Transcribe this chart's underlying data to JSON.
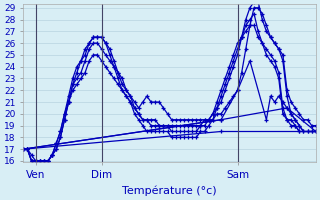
{
  "xlabel": "Température (°c)",
  "bg_color": "#d8eef5",
  "grid_color": "#b8d4e0",
  "line_color": "#0000bb",
  "ylim": [
    16,
    29
  ],
  "yticks": [
    16,
    17,
    18,
    19,
    20,
    21,
    22,
    23,
    24,
    25,
    26,
    27,
    28,
    29
  ],
  "xlim": [
    0,
    71
  ],
  "xtick_labels": [
    "Ven",
    "Dim",
    "Sam"
  ],
  "xtick_positions": [
    3,
    19,
    52
  ],
  "vline_positions": [
    3,
    19,
    52
  ],
  "series": [
    {
      "x": [
        0,
        1,
        2,
        3,
        4,
        5,
        6,
        7,
        8,
        9,
        10,
        11,
        12,
        13,
        14,
        15,
        16,
        17,
        18,
        19,
        20,
        21,
        22,
        23,
        24,
        25,
        26,
        27,
        28,
        29,
        30,
        31,
        32,
        33,
        34,
        35,
        36,
        37,
        38,
        39,
        40,
        41,
        42,
        43,
        44,
        45,
        46,
        47,
        48,
        49,
        50,
        51,
        52,
        53,
        54,
        55,
        56,
        57,
        58,
        59,
        60,
        61,
        62,
        63,
        64,
        65,
        66,
        67,
        68,
        69,
        70,
        71
      ],
      "y": [
        17.0,
        17.0,
        16.5,
        16.0,
        16.0,
        16.0,
        16.0,
        16.5,
        17.5,
        18.5,
        20.0,
        21.5,
        23.0,
        24.0,
        24.5,
        25.0,
        26.0,
        26.5,
        26.5,
        26.5,
        26.0,
        25.5,
        24.5,
        23.5,
        22.5,
        22.0,
        21.5,
        21.0,
        20.5,
        21.0,
        21.5,
        21.0,
        21.0,
        21.0,
        20.5,
        20.0,
        19.5,
        19.5,
        19.5,
        19.5,
        19.5,
        19.5,
        19.5,
        19.5,
        19.5,
        19.5,
        19.5,
        20.0,
        20.0,
        20.5,
        21.0,
        21.5,
        22.0,
        23.5,
        25.5,
        27.5,
        29.0,
        29.0,
        28.5,
        27.5,
        26.5,
        26.0,
        25.5,
        25.0,
        22.0,
        21.0,
        20.5,
        20.0,
        19.5,
        19.5,
        19.0,
        19.0
      ]
    },
    {
      "x": [
        0,
        1,
        2,
        3,
        4,
        5,
        6,
        7,
        8,
        9,
        10,
        11,
        12,
        13,
        14,
        15,
        16,
        17,
        18,
        19,
        20,
        21,
        22,
        23,
        24,
        25,
        26,
        27,
        28,
        29,
        30,
        31,
        32,
        33,
        34,
        35,
        36,
        37,
        38,
        39,
        40,
        41,
        42,
        43,
        44,
        45,
        46,
        47,
        48,
        49,
        50,
        51,
        52,
        53,
        54,
        55,
        56,
        57,
        58,
        59,
        60,
        61,
        62,
        63,
        64,
        65,
        66,
        67,
        68,
        69,
        70,
        71
      ],
      "y": [
        17.0,
        17.0,
        16.0,
        16.0,
        16.0,
        16.0,
        16.0,
        16.5,
        17.5,
        18.5,
        20.0,
        21.0,
        22.5,
        23.5,
        24.5,
        25.5,
        26.0,
        26.5,
        26.5,
        26.5,
        26.0,
        25.0,
        24.0,
        23.0,
        22.0,
        21.5,
        21.0,
        20.5,
        20.0,
        19.5,
        19.5,
        19.0,
        19.0,
        19.0,
        19.0,
        19.0,
        19.0,
        19.0,
        19.0,
        19.0,
        19.0,
        19.0,
        19.0,
        19.0,
        19.5,
        19.5,
        20.0,
        20.5,
        21.0,
        22.0,
        23.0,
        24.0,
        25.0,
        26.5,
        28.0,
        29.0,
        29.5,
        29.5,
        28.0,
        27.0,
        26.5,
        26.0,
        25.5,
        24.5,
        21.5,
        20.0,
        19.5,
        19.0,
        18.5,
        18.5,
        18.5,
        18.5
      ]
    },
    {
      "x": [
        0,
        1,
        2,
        3,
        4,
        5,
        6,
        7,
        8,
        9,
        10,
        11,
        12,
        13,
        14,
        15,
        16,
        17,
        18,
        19,
        20,
        21,
        22,
        23,
        24,
        25,
        26,
        27,
        28,
        29,
        30,
        31,
        32,
        33,
        34,
        35,
        36,
        37,
        38,
        39,
        40,
        41,
        42,
        43,
        44,
        45,
        46,
        47,
        48,
        49,
        50,
        51,
        52,
        53,
        54,
        55,
        56,
        57,
        58,
        59,
        60,
        61,
        62,
        63,
        64,
        65,
        66,
        67
      ],
      "y": [
        17.0,
        17.0,
        16.0,
        16.0,
        16.0,
        16.0,
        16.0,
        16.5,
        17.0,
        18.0,
        19.5,
        21.0,
        22.5,
        23.0,
        23.5,
        24.5,
        25.5,
        26.0,
        26.0,
        25.5,
        25.0,
        24.5,
        24.0,
        23.5,
        23.0,
        22.0,
        21.5,
        20.5,
        20.0,
        19.5,
        19.5,
        19.5,
        19.5,
        19.0,
        19.0,
        19.0,
        18.5,
        18.5,
        18.5,
        18.5,
        18.5,
        18.5,
        18.5,
        19.0,
        19.0,
        19.5,
        20.0,
        21.0,
        22.0,
        23.0,
        24.0,
        25.0,
        26.0,
        26.5,
        27.5,
        28.0,
        28.5,
        27.0,
        26.0,
        25.5,
        25.0,
        24.5,
        23.5,
        20.5,
        19.5,
        19.5,
        19.0,
        18.5
      ]
    },
    {
      "x": [
        0,
        1,
        2,
        3,
        4,
        5,
        6,
        7,
        8,
        9,
        10,
        11,
        12,
        13,
        14,
        15,
        16,
        17,
        18,
        19,
        20,
        21,
        22,
        23,
        24,
        25,
        26,
        27,
        28,
        29,
        30,
        31,
        32,
        33,
        34,
        35,
        36,
        37,
        38,
        39,
        40,
        41,
        42,
        43,
        44,
        45,
        46,
        47,
        48,
        49,
        50,
        51,
        52,
        53,
        54,
        55,
        56,
        57,
        58,
        59,
        60,
        61,
        62,
        63,
        64,
        65,
        66,
        67
      ],
      "y": [
        17.0,
        17.0,
        16.0,
        16.0,
        16.0,
        16.0,
        16.0,
        16.5,
        17.0,
        18.0,
        19.5,
        21.0,
        22.0,
        22.5,
        23.0,
        23.5,
        24.5,
        25.0,
        25.0,
        24.5,
        24.0,
        23.5,
        23.0,
        22.5,
        22.0,
        21.5,
        21.0,
        20.0,
        19.5,
        19.0,
        18.5,
        18.5,
        18.5,
        18.5,
        18.5,
        18.5,
        18.0,
        18.0,
        18.0,
        18.0,
        18.0,
        18.0,
        18.0,
        18.5,
        18.5,
        19.0,
        19.5,
        20.5,
        21.5,
        22.5,
        23.5,
        24.5,
        25.5,
        26.5,
        27.0,
        27.5,
        27.5,
        26.5,
        26.0,
        25.0,
        24.5,
        24.0,
        23.0,
        20.0,
        19.5,
        19.0,
        19.0,
        18.5
      ]
    },
    {
      "x": [
        0,
        48,
        71
      ],
      "y": [
        17.0,
        18.5,
        18.5
      ]
    },
    {
      "x": [
        0,
        48,
        64,
        71
      ],
      "y": [
        17.0,
        19.5,
        20.5,
        18.5
      ]
    },
    {
      "x": [
        0,
        48,
        52,
        55,
        59,
        60,
        61,
        62,
        63,
        64,
        65,
        66,
        67,
        68,
        69,
        70,
        71
      ],
      "y": [
        17.0,
        19.5,
        22.0,
        24.5,
        19.5,
        21.5,
        21.0,
        21.5,
        21.0,
        20.5,
        20.0,
        19.5,
        19.0,
        18.5,
        18.5,
        18.5,
        18.5
      ]
    }
  ]
}
